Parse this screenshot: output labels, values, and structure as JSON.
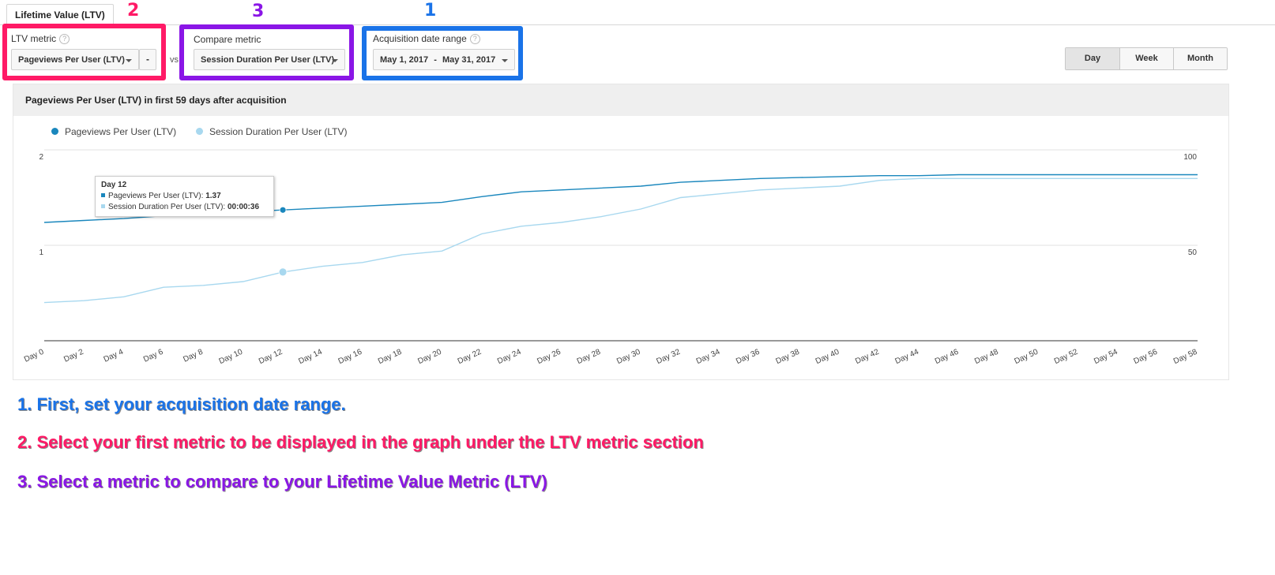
{
  "tab": {
    "label": "Lifetime Value (LTV)"
  },
  "ltv_metric": {
    "label": "LTV metric",
    "help": "?",
    "value": "Pageviews Per User (LTV)",
    "remove_label": "-"
  },
  "vs_label": "vs",
  "compare_metric": {
    "label": "Compare metric",
    "value": "Session Duration Per User (LTV)"
  },
  "date_range": {
    "label": "Acquisition date range",
    "help": "?",
    "start": "May 1, 2017",
    "separator": "-",
    "end": "May 31, 2017"
  },
  "highlights": {
    "one": {
      "number": "1",
      "color": "#1a73e8"
    },
    "two": {
      "number": "2",
      "color": "#ff1a66"
    },
    "three": {
      "number": "3",
      "color": "#8a16e6"
    }
  },
  "granularity": {
    "day": "Day",
    "week": "Week",
    "month": "Month",
    "selected": "Day"
  },
  "chart_header": "Pageviews Per User (LTV) in first 59 days after acquisition",
  "tooltip": {
    "title": "Day 12",
    "row1_label": "Pageviews Per User (LTV): ",
    "row1_value": "1.37",
    "row2_label": "Session Duration Per User (LTV): ",
    "row2_value": "00:00:36"
  },
  "instructions": {
    "one": "1. First, set your acquisition date range.",
    "two": "2. Select your first metric to be displayed in the graph under the LTV metric section",
    "three": "3. Select a metric to compare to your Lifetime Value Metric (LTV)"
  },
  "colors": {
    "series1": "#1a87bd",
    "series2": "#a8d8ef",
    "instr1": "#1a73e8",
    "instr2": "#ff1a66",
    "instr3": "#8a16e6"
  },
  "chart_data": {
    "type": "line",
    "legend": [
      "Pageviews Per User (LTV)",
      "Session Duration Per User (LTV)"
    ],
    "x": [
      0,
      2,
      4,
      6,
      8,
      10,
      12,
      14,
      16,
      18,
      20,
      22,
      24,
      26,
      28,
      30,
      32,
      34,
      36,
      38,
      40,
      42,
      44,
      46,
      48,
      50,
      52,
      54,
      56,
      58
    ],
    "x_tick_labels": [
      "Day 0",
      "Day 2",
      "Day 4",
      "Day 6",
      "Day 8",
      "Day 10",
      "Day 12",
      "Day 14",
      "Day 16",
      "Day 18",
      "Day 20",
      "Day 22",
      "Day 24",
      "Day 26",
      "Day 28",
      "Day 30",
      "Day 32",
      "Day 34",
      "Day 36",
      "Day 38",
      "Day 40",
      "Day 42",
      "Day 44",
      "Day 46",
      "Day 48",
      "Day 50",
      "Day 52",
      "Day 54",
      "Day 56",
      "Day 58"
    ],
    "y_left": {
      "ylim": [
        0,
        2
      ],
      "tick_labels": [
        "2",
        "1"
      ],
      "ticks": [
        2,
        1
      ]
    },
    "y_right": {
      "ylim": [
        0,
        100
      ],
      "tick_labels": [
        "100",
        "50"
      ],
      "ticks": [
        100,
        50
      ]
    },
    "highlight_index": 6,
    "series": [
      {
        "name": "Pageviews Per User (LTV)",
        "axis": "left",
        "values": [
          1.24,
          1.26,
          1.28,
          1.31,
          1.33,
          1.35,
          1.37,
          1.39,
          1.41,
          1.43,
          1.45,
          1.51,
          1.56,
          1.58,
          1.6,
          1.62,
          1.66,
          1.68,
          1.7,
          1.71,
          1.72,
          1.73,
          1.73,
          1.74,
          1.74,
          1.74,
          1.74,
          1.74,
          1.74,
          1.74
        ]
      },
      {
        "name": "Session Duration Per User (LTV)",
        "axis": "right",
        "values": [
          20,
          21,
          23,
          28,
          29,
          31,
          36,
          39,
          41,
          45,
          47,
          56,
          60,
          62,
          65,
          69,
          75,
          77,
          79,
          80,
          81,
          84,
          85,
          85,
          85,
          85,
          85,
          85,
          85,
          85
        ]
      }
    ]
  }
}
